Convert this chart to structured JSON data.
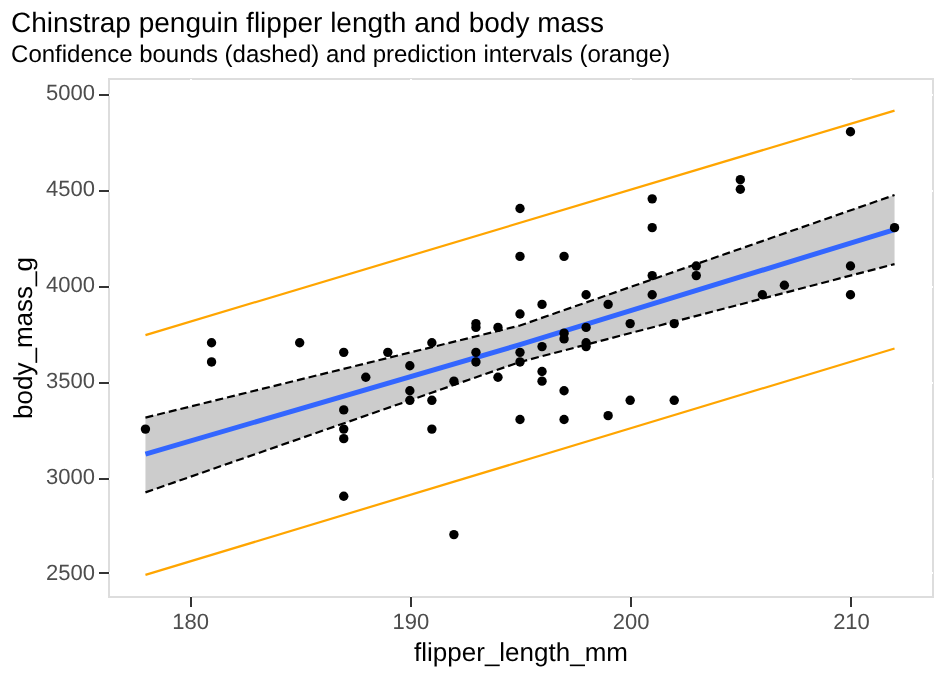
{
  "chart_data": {
    "type": "scatter",
    "title": "Chinstrap penguin flipper length and body mass",
    "subtitle": "Confidence bounds (dashed) and prediction intervals (orange)",
    "xlabel": "flipper_length_mm",
    "ylabel": "body_mass_g",
    "xlim": [
      176.3,
      213.7
    ],
    "xticks": [
      180,
      190,
      200,
      210
    ],
    "ylim": [
      2380,
      5080
    ],
    "yticks": [
      2500,
      3000,
      3500,
      4000,
      4500,
      5000
    ],
    "grid": true,
    "series": [
      {
        "color": "#000000",
        "marker": "circle",
        "x": [
          178,
          181,
          181,
          185,
          187,
          187,
          187,
          187,
          187,
          188,
          189,
          190,
          190,
          190,
          191,
          191,
          191,
          192,
          192,
          193,
          193,
          193,
          193,
          194,
          194,
          195,
          195,
          195,
          195,
          195,
          195,
          196,
          196,
          196,
          196,
          197,
          197,
          197,
          197,
          197,
          198,
          198,
          198,
          198,
          199,
          199,
          200,
          200,
          201,
          201,
          201,
          201,
          202,
          202,
          203,
          203,
          205,
          205,
          206,
          207,
          210,
          210,
          210,
          212
        ],
        "values": [
          3250,
          3700,
          3600,
          3700,
          3650,
          3350,
          3250,
          3200,
          2900,
          3520,
          3650,
          3580,
          3450,
          3400,
          3700,
          3400,
          3250,
          3500,
          2700,
          3800,
          3780,
          3650,
          3600,
          3780,
          3520,
          4400,
          4150,
          3850,
          3650,
          3600,
          3300,
          3900,
          3680,
          3550,
          3500,
          4150,
          3750,
          3720,
          3450,
          3300,
          3950,
          3780,
          3700,
          3680,
          3900,
          3320,
          3800,
          3400,
          4450,
          4300,
          4050,
          3950,
          3800,
          3400,
          4100,
          4050,
          4550,
          4500,
          3950,
          4000,
          4800,
          4100,
          3950,
          4300
        ]
      },
      {
        "type": "line",
        "color": "#3366ff",
        "x": [
          178,
          195,
          212
        ],
        "values": [
          3120,
          3690,
          4290
        ],
        "lower": [
          2920,
          3600,
          4110
        ],
        "upper": [
          3310,
          3790,
          4470
        ]
      },
      {
        "type": "line",
        "color": "#000000",
        "line_style": "dashed",
        "x": [
          178,
          195,
          212
        ],
        "values": [
          2920,
          3600,
          4110
        ]
      },
      {
        "type": "line",
        "color": "#000000",
        "line_style": "dashed",
        "x": [
          178,
          195,
          212
        ],
        "values": [
          3310,
          3790,
          4470
        ]
      },
      {
        "type": "line",
        "color": "#ffa500",
        "x": [
          178,
          212
        ],
        "values": [
          3740,
          4910
        ]
      },
      {
        "type": "line",
        "color": "#ffa500",
        "x": [
          178,
          212
        ],
        "values": [
          2490,
          3670
        ]
      }
    ]
  }
}
